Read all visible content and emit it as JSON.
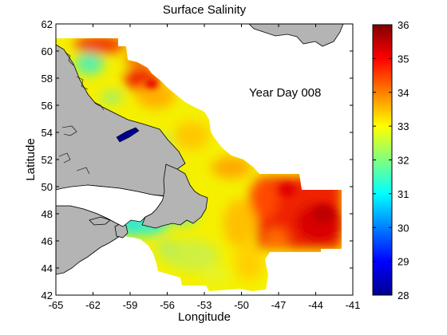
{
  "title": "Surface Salinity",
  "annotation": "Year Day 008",
  "x_axis": {
    "label": "Longitude",
    "ticks": [
      "-65",
      "-62",
      "-59",
      "-56",
      "-53",
      "-50",
      "-47",
      "-44",
      "-41"
    ],
    "range": [
      -65,
      -41
    ]
  },
  "y_axis": {
    "label": "Latitude",
    "ticks": [
      "42",
      "44",
      "46",
      "48",
      "50",
      "52",
      "54",
      "56",
      "58",
      "60",
      "62"
    ],
    "range": [
      42,
      62
    ]
  },
  "colorbar": {
    "ticks": [
      "28",
      "29",
      "30",
      "31",
      "32",
      "33",
      "34",
      "35",
      "36"
    ],
    "range": [
      28,
      36
    ],
    "colormap": "jet"
  },
  "colors": {
    "land": "#b4b4b4",
    "background": "#ffffff"
  }
}
